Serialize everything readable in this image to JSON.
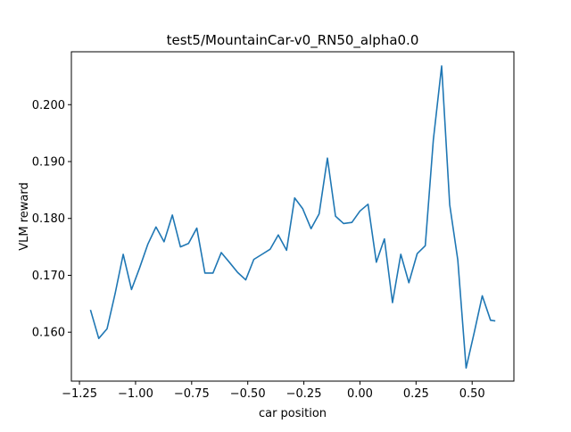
{
  "chart_data": {
    "type": "line",
    "title": "test5/MountainCar-v0_RN50_alpha0.0",
    "xlabel": "car position",
    "ylabel": "VLM reward",
    "xlim": [
      -1.286,
      0.686
    ],
    "ylim": [
      0.1514,
      0.2093
    ],
    "xticks": [
      -1.25,
      -1.0,
      -0.75,
      -0.5,
      -0.25,
      0.0,
      0.25,
      0.5
    ],
    "xtick_labels": [
      "−1.25",
      "−1.00",
      "−0.75",
      "−0.50",
      "−0.25",
      "0.00",
      "0.25",
      "0.50"
    ],
    "yticks": [
      0.16,
      0.17,
      0.18,
      0.19,
      0.2
    ],
    "ytick_labels": [
      "0.160",
      "0.170",
      "0.180",
      "0.190",
      "0.200"
    ],
    "grid": false,
    "line_color": "#1f77b4",
    "series": [
      {
        "x": [
          -1.2,
          -1.164,
          -1.127,
          -1.091,
          -1.055,
          -1.018,
          -0.982,
          -0.945,
          -0.909,
          -0.873,
          -0.836,
          -0.8,
          -0.764,
          -0.727,
          -0.691,
          -0.655,
          -0.618,
          -0.582,
          -0.545,
          -0.509,
          -0.473,
          -0.436,
          -0.4,
          -0.364,
          -0.327,
          -0.291,
          -0.255,
          -0.218,
          -0.182,
          -0.145,
          -0.109,
          -0.073,
          -0.036,
          0.0,
          0.036,
          0.073,
          0.109,
          0.145,
          0.182,
          0.218,
          0.255,
          0.291,
          0.327,
          0.364,
          0.4,
          0.436,
          0.473,
          0.509,
          0.545,
          0.582,
          0.6
        ],
        "values": [
          0.1638,
          0.1589,
          0.1606,
          0.1668,
          0.1737,
          0.1675,
          0.1713,
          0.1755,
          0.1785,
          0.1759,
          0.1806,
          0.175,
          0.1756,
          0.1783,
          0.1704,
          0.1704,
          0.174,
          0.1723,
          0.1705,
          0.1692,
          0.1728,
          0.1737,
          0.1746,
          0.1771,
          0.1744,
          0.1836,
          0.1817,
          0.1782,
          0.1808,
          0.1906,
          0.1804,
          0.1791,
          0.1793,
          0.1813,
          0.1825,
          0.1723,
          0.1764,
          0.1652,
          0.1737,
          0.1687,
          0.1738,
          0.1752,
          0.1938,
          0.2068,
          0.1824,
          0.1727,
          0.1537,
          0.1599,
          0.1664,
          0.1621,
          0.162
        ]
      }
    ]
  }
}
